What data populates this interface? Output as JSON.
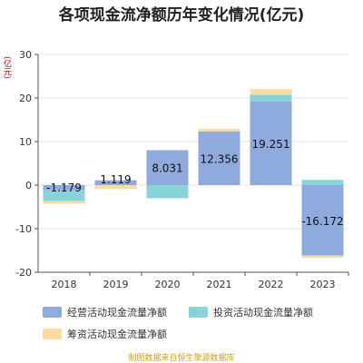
{
  "chart_data": {
    "type": "bar",
    "stacked": true,
    "title": "各项现金流净额历年变化情况(亿元)",
    "unit_label": "(亿元)",
    "categories": [
      "2018",
      "2019",
      "2020",
      "2021",
      "2022",
      "2023"
    ],
    "ylim": [
      -20,
      30
    ],
    "yticks": [
      -20,
      -10,
      0,
      10,
      20,
      30
    ],
    "grid": true,
    "legend_position": "bottom",
    "series": [
      {
        "name": "经营活动现金流量净额",
        "color": "#8faadc",
        "values": [
          -1.179,
          1.119,
          8.031,
          12.356,
          19.251,
          -16.172
        ]
      },
      {
        "name": "投资活动现金流量净额",
        "color": "#86d3d8",
        "values": [
          -2.5,
          0.0,
          -3.0,
          0.0,
          1.5,
          1.2
        ]
      },
      {
        "name": "筹资活动现金流量净额",
        "color": "#fddca0",
        "values": [
          -0.6,
          -0.9,
          0.0,
          0.6,
          1.3,
          -0.5
        ]
      }
    ],
    "data_labels": [
      "-1.179",
      "1.119",
      "8.031",
      "12.356",
      "19.251",
      "-16.172"
    ]
  },
  "source_note": "制图数据来自恒生聚源数据库"
}
